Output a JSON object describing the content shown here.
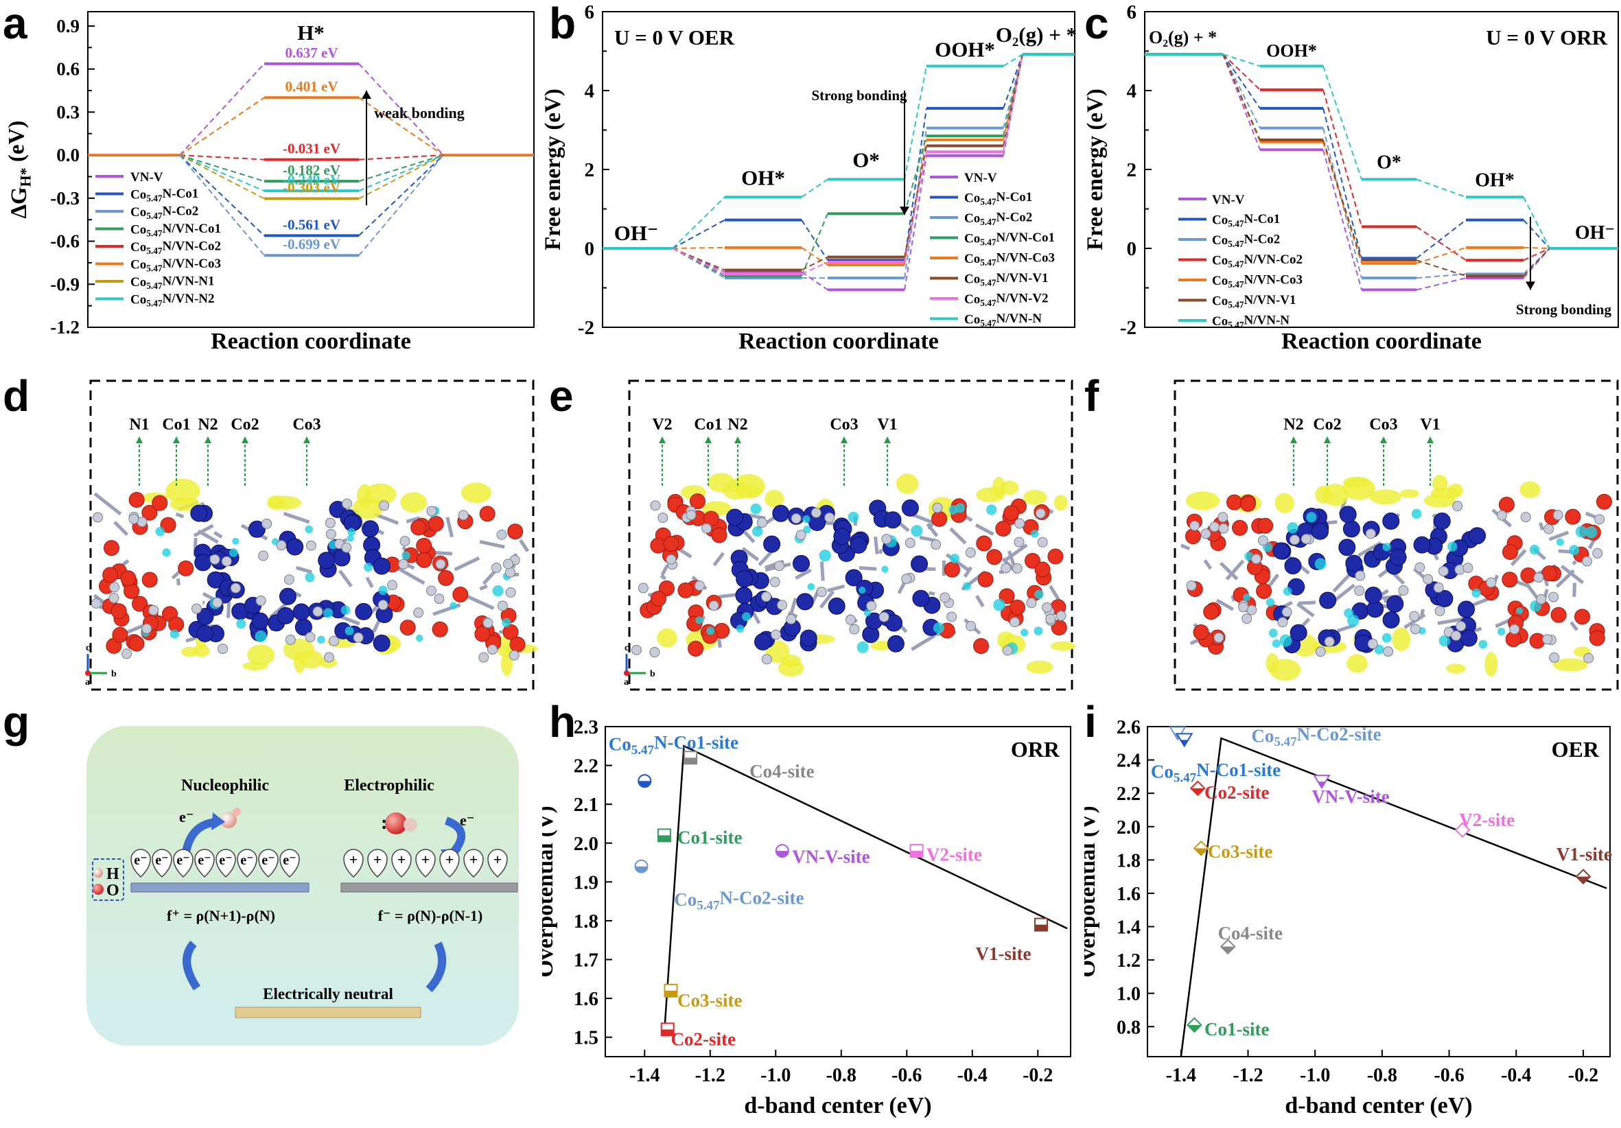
{
  "panel_labels": [
    "a",
    "b",
    "c",
    "d",
    "e",
    "f",
    "g",
    "h",
    "i"
  ],
  "colors": {
    "purple": "#b055e0",
    "dblue": "#1f56c8",
    "lblue": "#6a98d2",
    "green": "#2e9e5a",
    "red": "#e02828",
    "orange": "#f07818",
    "brown": "#8a4a2a",
    "pink": "#f070e0",
    "teal": "#2cc7c7",
    "mustard": "#c99a10",
    "gray": "#888888",
    "blue": "#2a7ad8",
    "darkred": "#8a3a2a"
  },
  "chart_data": [
    {
      "id": "a",
      "type": "line",
      "title": "H*",
      "xlabel": "Reaction coordinate",
      "ylabel": "∆G",
      "ylabel_sub": "H*",
      "ylabel_unit": " (eV)",
      "ylim": [
        -1.2,
        1.0
      ],
      "yticks": [
        "0.9",
        "0.6",
        "0.3",
        "0.0",
        "-0.3",
        "-0.6",
        "-0.9",
        "-1.2"
      ],
      "annotation": "weak bonding",
      "legend": [
        {
          "pre": "VN-V",
          "sub": "",
          "post": "",
          "color": "purple"
        },
        {
          "pre": "Co",
          "sub": "5.47",
          "post": "N-Co1",
          "color": "dblue"
        },
        {
          "pre": "Co",
          "sub": "5.47",
          "post": "N-Co2",
          "color": "lblue"
        },
        {
          "pre": "Co",
          "sub": "5.47",
          "post": "N/VN-Co1",
          "color": "green"
        },
        {
          "pre": "Co",
          "sub": "5.47",
          "post": "N/VN-Co2",
          "color": "red"
        },
        {
          "pre": "Co",
          "sub": "5.47",
          "post": "N/VN-Co3",
          "color": "orange"
        },
        {
          "pre": "Co",
          "sub": "5.47",
          "post": "N/VN-N1",
          "color": "mustard"
        },
        {
          "pre": "Co",
          "sub": "5.47",
          "post": "N/VN-N2",
          "color": "teal"
        }
      ],
      "levels": [
        {
          "value": 0.637,
          "label": "0.637 eV",
          "color": "purple"
        },
        {
          "value": 0.401,
          "label": "0.401 eV",
          "color": "orange"
        },
        {
          "value": -0.031,
          "label": "-0.031 eV",
          "color": "red"
        },
        {
          "value": -0.182,
          "label": "-0.182 eV",
          "color": "green"
        },
        {
          "value": -0.249,
          "label": "-0.249 eV",
          "color": "teal"
        },
        {
          "value": -0.303,
          "label": "-0.303 eV",
          "color": "mustard"
        },
        {
          "value": -0.561,
          "label": "-0.561 eV",
          "color": "dblue"
        },
        {
          "value": -0.699,
          "label": "-0.699 eV",
          "color": "lblue"
        }
      ]
    },
    {
      "id": "b",
      "type": "line",
      "title": "U = 0 V OER",
      "xlabel": "Reaction coordinate",
      "ylabel": "Free energy (eV)",
      "ylim": [
        -2,
        6
      ],
      "yticks": [
        "6",
        "4",
        "2",
        "0",
        "-2"
      ],
      "annotation": "Strong bonding",
      "step_labels": [
        "OH⁻",
        "OH*",
        "O*",
        "OOH*",
        "O₂(g) + *"
      ],
      "legend": [
        {
          "pre": "VN-V",
          "sub": "",
          "post": "",
          "color": "purple"
        },
        {
          "pre": "Co",
          "sub": "5.47",
          "post": "N-Co1",
          "color": "dblue"
        },
        {
          "pre": "Co",
          "sub": "5.47",
          "post": "N-Co2",
          "color": "lblue"
        },
        {
          "pre": "Co",
          "sub": "5.47",
          "post": "N/VN-Co1",
          "color": "green"
        },
        {
          "pre": "Co",
          "sub": "5.47",
          "post": "N/VN-Co3",
          "color": "orange"
        },
        {
          "pre": "Co",
          "sub": "5.47",
          "post": "N/VN-V1",
          "color": "brown"
        },
        {
          "pre": "Co",
          "sub": "5.47",
          "post": "N/VN-V2",
          "color": "pink"
        },
        {
          "pre": "Co",
          "sub": "5.47",
          "post": "N/VN-N",
          "color": "teal"
        }
      ],
      "series": [
        {
          "color": "purple",
          "values": [
            0,
            -0.6,
            -1.05,
            2.35,
            4.92
          ]
        },
        {
          "color": "dblue",
          "values": [
            0,
            0.72,
            -0.3,
            3.55,
            4.92
          ]
        },
        {
          "color": "lblue",
          "values": [
            0,
            -0.75,
            -0.75,
            3.05,
            4.92
          ]
        },
        {
          "color": "green",
          "values": [
            0,
            -0.7,
            0.88,
            2.85,
            4.92
          ]
        },
        {
          "color": "orange",
          "values": [
            0,
            0.02,
            -0.42,
            2.75,
            4.92
          ]
        },
        {
          "color": "brown",
          "values": [
            0,
            -0.55,
            -0.22,
            2.6,
            4.92
          ]
        },
        {
          "color": "pink",
          "values": [
            0,
            -0.65,
            -0.35,
            2.45,
            4.92
          ]
        },
        {
          "color": "teal",
          "values": [
            0,
            1.3,
            1.75,
            4.62,
            4.92
          ]
        }
      ]
    },
    {
      "id": "c",
      "type": "line",
      "title": "U = 0 V ORR",
      "xlabel": "Reaction coordinate",
      "ylabel": "Free energy (eV)",
      "ylim": [
        -2,
        6
      ],
      "yticks": [
        "6",
        "4",
        "2",
        "0",
        "-2"
      ],
      "annotation": "Strong bonding",
      "step_labels": [
        "O₂(g) + *",
        "OOH*",
        "O*",
        "OH*",
        "OH⁻"
      ],
      "legend": [
        {
          "pre": "VN-V",
          "sub": "",
          "post": "",
          "color": "purple"
        },
        {
          "pre": "Co",
          "sub": "5.47",
          "post": "N-Co1",
          "color": "dblue"
        },
        {
          "pre": "Co",
          "sub": "5.47",
          "post": "N-Co2",
          "color": "lblue"
        },
        {
          "pre": "Co",
          "sub": "5.47",
          "post": "N/VN-Co2",
          "color": "red"
        },
        {
          "pre": "Co",
          "sub": "5.47",
          "post": "N/VN-Co3",
          "color": "orange"
        },
        {
          "pre": "Co",
          "sub": "5.47",
          "post": "N/VN-V1",
          "color": "brown"
        },
        {
          "pre": "Co",
          "sub": "5.47",
          "post": "N/VN-N",
          "color": "teal"
        }
      ],
      "series": [
        {
          "color": "purple",
          "values": [
            4.92,
            2.5,
            -1.05,
            -0.75,
            0
          ]
        },
        {
          "color": "dblue",
          "values": [
            4.92,
            3.55,
            -0.25,
            0.72,
            0
          ]
        },
        {
          "color": "lblue",
          "values": [
            4.92,
            3.05,
            -0.75,
            -0.65,
            0
          ]
        },
        {
          "color": "red",
          "values": [
            4.92,
            4.02,
            0.55,
            -0.3,
            0
          ]
        },
        {
          "color": "orange",
          "values": [
            4.92,
            2.7,
            -0.38,
            0.02,
            0
          ]
        },
        {
          "color": "brown",
          "values": [
            4.92,
            2.75,
            -0.3,
            -0.7,
            0
          ]
        },
        {
          "color": "teal",
          "values": [
            4.92,
            4.62,
            1.75,
            1.3,
            0
          ]
        }
      ]
    },
    {
      "id": "h",
      "type": "scatter",
      "title": "ORR",
      "xlabel": "d-band center (eV)",
      "ylabel": "Overpotential (V)",
      "xlim": [
        -1.52,
        -0.1
      ],
      "ylim": [
        1.45,
        2.3
      ],
      "xticks": [
        "-1.4",
        "-1.2",
        "-1.0",
        "-0.8",
        "-0.6",
        "-0.4",
        "-0.2"
      ],
      "yticks": [
        "2.3",
        "2.2",
        "2.1",
        "2.0",
        "1.9",
        "1.8",
        "1.7",
        "1.6",
        "1.5"
      ],
      "points": [
        {
          "x": -1.4,
          "y": 2.16,
          "marker": "circle-half",
          "color": "dblue"
        },
        {
          "x": -1.41,
          "y": 1.94,
          "marker": "circle-half",
          "color": "lblue"
        },
        {
          "x": -1.34,
          "y": 2.02,
          "marker": "square-half",
          "color": "green"
        },
        {
          "x": -1.26,
          "y": 2.22,
          "marker": "square-half",
          "color": "gray"
        },
        {
          "x": -0.98,
          "y": 1.98,
          "marker": "circle-half",
          "color": "purple"
        },
        {
          "x": -0.57,
          "y": 1.98,
          "marker": "square-half",
          "color": "pink"
        },
        {
          "x": -0.19,
          "y": 1.79,
          "marker": "square-half",
          "color": "darkred"
        },
        {
          "x": -1.32,
          "y": 1.62,
          "marker": "square-half",
          "color": "mustard"
        },
        {
          "x": -1.33,
          "y": 1.52,
          "marker": "square-half",
          "color": "red"
        }
      ],
      "fit": [
        [
          -1.34,
          1.51
        ],
        [
          -1.28,
          2.25
        ],
        [
          -0.11,
          1.78
        ]
      ],
      "labels": [
        {
          "pre": "Co",
          "sub": "5.47",
          "post": "N-Co1-site",
          "color": "blue",
          "x": -1.51,
          "y": 2.255
        },
        {
          "pre": "Co4-site",
          "sub": "",
          "post": "",
          "color": "gray",
          "x": -1.08,
          "y": 2.185
        },
        {
          "pre": "Co1-site",
          "sub": "",
          "post": "",
          "color": "green",
          "x": -1.3,
          "y": 2.015
        },
        {
          "pre": "VN-V-site",
          "sub": "",
          "post": "",
          "color": "purple",
          "x": -0.95,
          "y": 1.965
        },
        {
          "pre": "V2-site",
          "sub": "",
          "post": "",
          "color": "pink",
          "x": -0.54,
          "y": 1.97
        },
        {
          "pre": "Co",
          "sub": "5.47",
          "post": "N-Co2-site",
          "color": "lblue",
          "x": -1.31,
          "y": 1.855
        },
        {
          "pre": "V1-site",
          "sub": "",
          "post": "",
          "color": "darkred",
          "x": -0.39,
          "y": 1.715
        },
        {
          "pre": "Co3-site",
          "sub": "",
          "post": "",
          "color": "mustard",
          "x": -1.3,
          "y": 1.595
        },
        {
          "pre": "Co2-site",
          "sub": "",
          "post": "",
          "color": "red",
          "x": -1.32,
          "y": 1.495
        }
      ]
    },
    {
      "id": "i",
      "type": "scatter",
      "title": "OER",
      "xlabel": "d-band center (eV)",
      "ylabel": "Overpotential (V)",
      "xlim": [
        -1.5,
        -0.12
      ],
      "ylim": [
        0.62,
        2.6
      ],
      "xticks": [
        "-1.4",
        "-1.2",
        "-1.0",
        "-0.8",
        "-0.6",
        "-0.4",
        "-0.2"
      ],
      "yticks": [
        "2.6",
        "2.4",
        "2.2",
        "2.0",
        "1.8",
        "1.6",
        "1.4",
        "1.2",
        "1.0",
        "0.8"
      ],
      "points": [
        {
          "x": -1.41,
          "y": 2.56,
          "marker": "tri-down",
          "color": "lblue"
        },
        {
          "x": -1.39,
          "y": 2.52,
          "marker": "tri-down",
          "color": "dblue"
        },
        {
          "x": -1.35,
          "y": 2.23,
          "marker": "diamond-half",
          "color": "red"
        },
        {
          "x": -0.98,
          "y": 2.27,
          "marker": "tri-down",
          "color": "purple"
        },
        {
          "x": -1.34,
          "y": 1.87,
          "marker": "diamond-half",
          "color": "mustard"
        },
        {
          "x": -0.56,
          "y": 1.98,
          "marker": "diamond",
          "color": "pink"
        },
        {
          "x": -0.2,
          "y": 1.7,
          "marker": "diamond-half",
          "color": "darkred"
        },
        {
          "x": -1.26,
          "y": 1.28,
          "marker": "diamond-half",
          "color": "gray"
        },
        {
          "x": -1.36,
          "y": 0.81,
          "marker": "diamond-half",
          "color": "green"
        }
      ],
      "fit": [
        [
          -1.4,
          0.62
        ],
        [
          -1.28,
          2.53
        ],
        [
          -0.13,
          1.63
        ]
      ],
      "labels": [
        {
          "pre": "Co",
          "sub": "5.47",
          "post": "N-Co2-site",
          "color": "lblue",
          "x": -1.19,
          "y": 2.545
        },
        {
          "pre": "Co",
          "sub": "5.47",
          "post": "N-Co1-site",
          "color": "blue",
          "x": -1.49,
          "y": 2.33
        },
        {
          "pre": "Co2-site",
          "sub": "",
          "post": "",
          "color": "red",
          "x": -1.33,
          "y": 2.205
        },
        {
          "pre": "VN-V-site",
          "sub": "",
          "post": "",
          "color": "purple",
          "x": -1.01,
          "y": 2.18
        },
        {
          "pre": "V2-site",
          "sub": "",
          "post": "",
          "color": "pink",
          "x": -0.57,
          "y": 2.04
        },
        {
          "pre": "V1-site",
          "sub": "",
          "post": "",
          "color": "darkred",
          "x": -0.28,
          "y": 1.835
        },
        {
          "pre": "Co3-site",
          "sub": "",
          "post": "",
          "color": "mustard",
          "x": -1.32,
          "y": 1.85
        },
        {
          "pre": "Co4-site",
          "sub": "",
          "post": "",
          "color": "gray",
          "x": -1.29,
          "y": 1.36
        },
        {
          "pre": "Co1-site",
          "sub": "",
          "post": "",
          "color": "green",
          "x": -1.33,
          "y": 0.785
        }
      ]
    }
  ],
  "structures": [
    {
      "id": "d",
      "site_labels": [
        "N1",
        "Co1",
        "N2",
        "Co2",
        "Co3"
      ],
      "axis_labels": [
        "c",
        "a",
        "b"
      ]
    },
    {
      "id": "e",
      "site_labels": [
        "V2",
        "Co1",
        "N2",
        "Co3",
        "V1"
      ],
      "axis_labels": [
        "c",
        "a",
        "b"
      ]
    },
    {
      "id": "f",
      "site_labels": [
        "N2",
        "Co2",
        "Co3",
        "V1"
      ],
      "axis_labels": []
    }
  ],
  "scheme": {
    "nucleophilic": "Nucleophilic",
    "electrophilic": "Electrophilic",
    "electron": "e⁻",
    "h_label": "H",
    "o_label": "O",
    "electron_short": "e⁻",
    "plus": "+",
    "f_plus": "f⁺ = ρ(N+1)-ρ(N)",
    "f_minus": "f⁻ = ρ(N)-ρ(N-1)",
    "neutral": "Electrically neutral"
  }
}
